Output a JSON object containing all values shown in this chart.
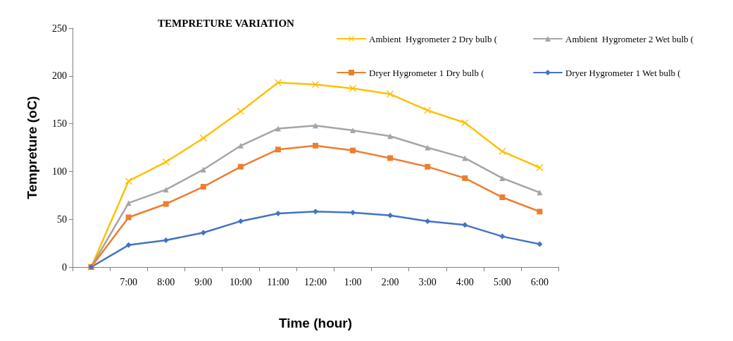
{
  "chart_data": {
    "type": "line",
    "title": "TEMPRETURE VARIATION",
    "xlabel": "Time (hour)",
    "ylabel": "Tempreture (oC)",
    "categories": [
      null,
      "7:00",
      "8:00",
      "9:00",
      "10:00",
      "11:00",
      "12:00",
      "1:00",
      "2:00",
      "3:00",
      "4:00",
      "5:00",
      "6:00"
    ],
    "ylim": [
      0,
      250
    ],
    "yticks": [
      0,
      50,
      100,
      150,
      200,
      250
    ],
    "grid": false,
    "legend": "top right",
    "line_style": "solid",
    "series": [
      {
        "name": "Ambient  Hygrometer 2 Dry bulb (",
        "color": "#ffc000",
        "marker": "cross",
        "values": [
          0,
          90,
          110,
          135,
          163,
          193,
          191,
          187,
          181,
          164,
          151,
          121,
          104
        ]
      },
      {
        "name": "Ambient  Hygrometer 2 Wet bulb (",
        "color": "#a5a5a5",
        "marker": "triangle",
        "values": [
          0,
          67,
          81,
          102,
          127,
          145,
          148,
          143,
          137,
          125,
          114,
          93,
          78
        ]
      },
      {
        "name": "Dryer Hygrometer 1 Dry bulb (",
        "color": "#ed7d31",
        "marker": "square",
        "values": [
          0,
          52,
          66,
          84,
          105,
          123,
          127,
          122,
          114,
          105,
          93,
          73,
          58
        ]
      },
      {
        "name": "Dryer Hygrometer 1 Wet bulb (",
        "color": "#4472c4",
        "marker": "diamond",
        "values": [
          0,
          23,
          28,
          36,
          48,
          56,
          58,
          57,
          54,
          48,
          44,
          32,
          24
        ]
      }
    ]
  }
}
